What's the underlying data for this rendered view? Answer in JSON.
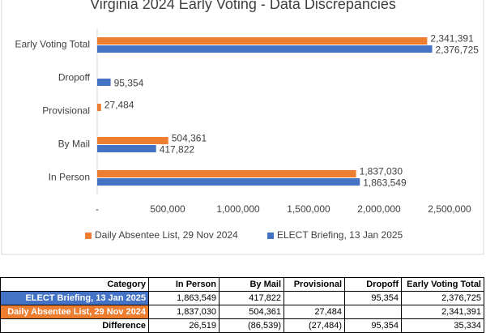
{
  "chart_data": {
    "type": "barh",
    "title": "Virginia 2024 Early Voting - Data Discrepancies",
    "categories": [
      "Early Voting Total",
      "Dropoff",
      "Provisional",
      "By Mail",
      "In Person"
    ],
    "series": [
      {
        "name": "Daily Absentee List, 29 Nov 2024",
        "color": "#ed7d31",
        "values": [
          2341391,
          null,
          27484,
          504361,
          1837030
        ],
        "value_labels": [
          "2,341,391",
          null,
          "27,484",
          "504,361",
          "1,837,030"
        ]
      },
      {
        "name": "ELECT Briefing, 13 Jan 2025",
        "color": "#4472c4",
        "values": [
          2376725,
          95354,
          null,
          417822,
          1863549
        ],
        "value_labels": [
          "2,376,725",
          "95,354",
          null,
          "417,822",
          "1,863,549"
        ]
      }
    ],
    "xlim": [
      0,
      2500000
    ],
    "xticks": [
      {
        "value": 0,
        "label": "-"
      },
      {
        "value": 500000,
        "label": "500,000"
      },
      {
        "value": 1000000,
        "label": "1,000,000"
      },
      {
        "value": 1500000,
        "label": "1,500,000"
      },
      {
        "value": 2000000,
        "label": "2,000,000"
      },
      {
        "value": 2500000,
        "label": "2,500,000"
      }
    ],
    "legend": "bottom"
  },
  "table": {
    "header": [
      "Category",
      "In Person",
      "By Mail",
      "Provisional",
      "Dropoff",
      "Early Voting Total"
    ],
    "rows": [
      [
        "ELECT Briefing, 13 Jan 2025",
        "1,863,549",
        "417,822",
        null,
        "95,354",
        "2,376,725"
      ],
      [
        "Daily Absentee List, 29 Nov 2024",
        "1,837,030",
        "504,361",
        "27,484",
        null,
        "2,341,391"
      ],
      [
        "Difference",
        "26,519",
        "(86,539)",
        "(27,484)",
        "95,354",
        "35,334"
      ]
    ]
  }
}
